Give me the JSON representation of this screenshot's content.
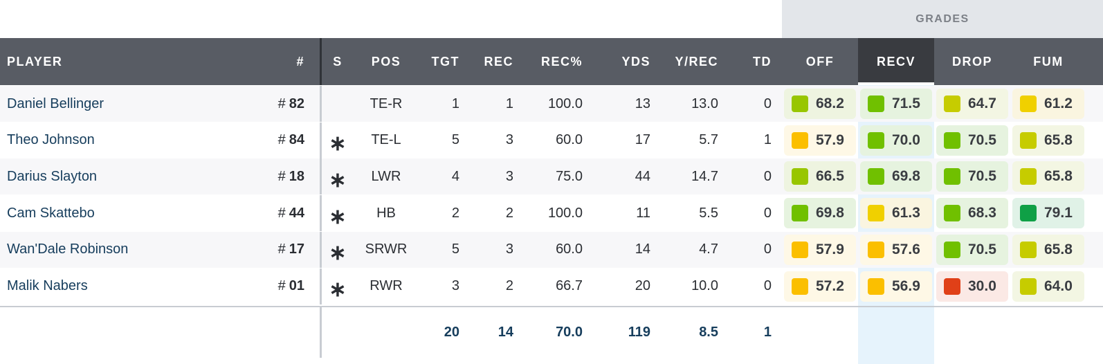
{
  "grades_label": "GRADES",
  "headers": {
    "player": "PLAYER",
    "num": "#",
    "s": "S",
    "pos": "POS",
    "tgt": "TGT",
    "rec": "REC",
    "recp": "REC%",
    "yds": "YDS",
    "ypr": "Y/REC",
    "td": "TD",
    "off": "OFF",
    "recv": "RECV",
    "drop": "DROP",
    "fum": "FUM"
  },
  "hash_symbol": "#",
  "starter_symbol": "∗",
  "rows": [
    {
      "player": "Daniel Bellinger",
      "num": "82",
      "s": "",
      "pos": "TE-R",
      "tgt": "1",
      "rec": "1",
      "recp": "100.0",
      "yds": "13",
      "ypr": "13.0",
      "td": "0",
      "off": "68.2",
      "recv": "71.5",
      "drop": "64.7",
      "fum": "61.2"
    },
    {
      "player": "Theo Johnson",
      "num": "84",
      "s": "∗",
      "pos": "TE-L",
      "tgt": "5",
      "rec": "3",
      "recp": "60.0",
      "yds": "17",
      "ypr": "5.7",
      "td": "1",
      "off": "57.9",
      "recv": "70.0",
      "drop": "70.5",
      "fum": "65.8"
    },
    {
      "player": "Darius Slayton",
      "num": "18",
      "s": "∗",
      "pos": "LWR",
      "tgt": "4",
      "rec": "3",
      "recp": "75.0",
      "yds": "44",
      "ypr": "14.7",
      "td": "0",
      "off": "66.5",
      "recv": "69.8",
      "drop": "70.5",
      "fum": "65.8"
    },
    {
      "player": "Cam Skattebo",
      "num": "44",
      "s": "∗",
      "pos": "HB",
      "tgt": "2",
      "rec": "2",
      "recp": "100.0",
      "yds": "11",
      "ypr": "5.5",
      "td": "0",
      "off": "69.8",
      "recv": "61.3",
      "drop": "68.3",
      "fum": "79.1"
    },
    {
      "player": "Wan'Dale Robinson",
      "num": "17",
      "s": "∗",
      "pos": "SRWR",
      "tgt": "5",
      "rec": "3",
      "recp": "60.0",
      "yds": "14",
      "ypr": "4.7",
      "td": "0",
      "off": "57.9",
      "recv": "57.6",
      "drop": "70.5",
      "fum": "65.8"
    },
    {
      "player": "Malik Nabers",
      "num": "01",
      "s": "∗",
      "pos": "RWR",
      "tgt": "3",
      "rec": "2",
      "recp": "66.7",
      "yds": "20",
      "ypr": "10.0",
      "td": "0",
      "off": "57.2",
      "recv": "56.9",
      "drop": "30.0",
      "fum": "64.0"
    }
  ],
  "totals": {
    "tgt": "20",
    "rec": "14",
    "recp": "70.0",
    "yds": "119",
    "ypr": "8.5",
    "td": "1"
  },
  "grade_colors": {
    "red": "#e04018",
    "orange": "#fbbf00",
    "yellow": "#f0d000",
    "yellowgreen": "#c6cc00",
    "lightgreen": "#98c600",
    "green": "#70c000",
    "darkgreen": "#0fa046"
  }
}
